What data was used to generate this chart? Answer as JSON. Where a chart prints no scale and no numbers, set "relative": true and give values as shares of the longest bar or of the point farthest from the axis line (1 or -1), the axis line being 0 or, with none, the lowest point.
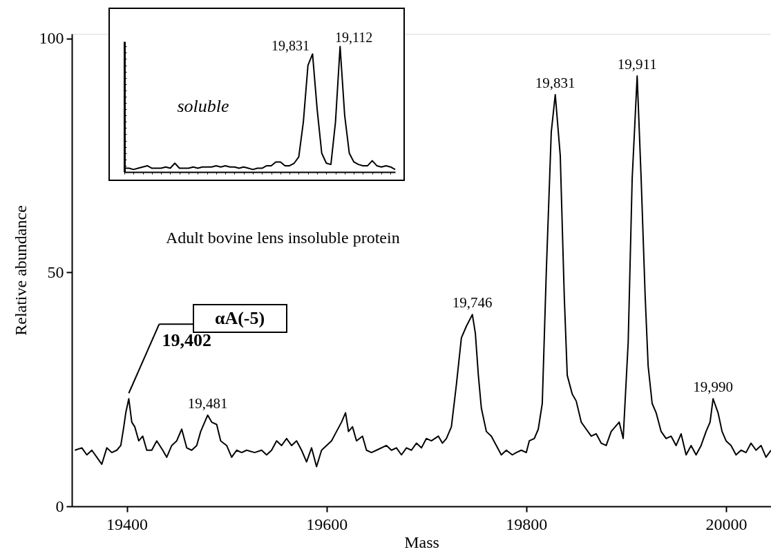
{
  "chart_data": [
    {
      "type": "line",
      "xlabel": "Mass",
      "ylabel": "Relative abundance",
      "xlim": [
        19345,
        20045
      ],
      "ylim": [
        0,
        101
      ],
      "xticks": [
        {
          "value": 19400,
          "label": "19400"
        },
        {
          "value": 19600,
          "label": "19600"
        },
        {
          "value": 19800,
          "label": "19800"
        },
        {
          "value": 20000,
          "label": "20000"
        }
      ],
      "yticks": [
        0,
        50,
        100
      ],
      "x": [
        19348,
        19355,
        19360,
        19365,
        19370,
        19375,
        19380,
        19385,
        19390,
        19394,
        19397,
        19399,
        19402,
        19405,
        19408,
        19412,
        19416,
        19420,
        19425,
        19430,
        19436,
        19440,
        19445,
        19450,
        19455,
        19460,
        19465,
        19470,
        19474,
        19478,
        19481,
        19485,
        19490,
        19494,
        19500,
        19505,
        19510,
        19515,
        19520,
        19528,
        19535,
        19540,
        19545,
        19550,
        19555,
        19560,
        19565,
        19570,
        19575,
        19580,
        19585,
        19590,
        19595,
        19600,
        19605,
        19610,
        19615,
        19619,
        19622,
        19626,
        19630,
        19636,
        19640,
        19645,
        19650,
        19660,
        19665,
        19670,
        19675,
        19680,
        19685,
        19690,
        19695,
        19700,
        19705,
        19712,
        19716,
        19720,
        19725,
        19730,
        19735,
        19740,
        19746,
        19749,
        19752,
        19755,
        19760,
        19765,
        19770,
        19775,
        19780,
        19786,
        19790,
        19795,
        19800,
        19803,
        19808,
        19812,
        19816,
        19820,
        19825,
        19829,
        19834,
        19838,
        19841,
        19846,
        19850,
        19855,
        19860,
        19865,
        19870,
        19875,
        19880,
        19885,
        19889,
        19893,
        19897,
        19902,
        19906,
        19911,
        19915,
        19919,
        19922,
        19926,
        19930,
        19935,
        19940,
        19945,
        19950,
        19955,
        19960,
        19965,
        19970,
        19975,
        19980,
        19984,
        19987,
        19992,
        19996,
        20000,
        20005,
        20010,
        20015,
        20020,
        20025,
        20030,
        20035,
        20040,
        20045
      ],
      "series": [
        {
          "color": "#000000",
          "values": [
            12,
            12.5,
            11,
            12,
            10.5,
            9,
            12.5,
            11.5,
            12,
            13,
            17,
            20,
            23,
            18,
            17,
            14,
            15,
            12,
            12,
            14,
            12,
            10.5,
            13,
            14,
            16.5,
            12.5,
            12,
            13,
            16,
            18,
            19.5,
            18,
            17.5,
            14,
            13,
            10.5,
            12,
            11.5,
            12,
            11.5,
            12,
            11,
            12,
            14,
            13,
            14.5,
            13,
            14,
            12,
            9.5,
            12.5,
            8.5,
            12,
            13,
            14,
            16,
            18,
            20,
            16,
            17,
            14,
            15,
            12,
            11.5,
            12,
            13,
            12,
            12.5,
            11,
            12.5,
            12,
            13.5,
            12.5,
            14.5,
            14,
            15,
            13.5,
            14.5,
            17,
            26,
            36,
            38.5,
            41,
            37,
            28,
            21,
            16,
            15,
            13,
            11,
            12,
            11,
            11.5,
            12,
            11.5,
            14,
            14.5,
            16.5,
            22,
            50,
            80,
            88,
            75,
            45,
            28,
            24,
            22.5,
            18,
            16.5,
            15,
            15.5,
            13.5,
            13,
            16,
            17,
            18,
            14.5,
            35,
            70,
            92,
            70,
            45,
            30,
            22,
            20,
            16,
            14.5,
            15,
            13,
            15.5,
            11,
            13,
            11,
            13,
            16,
            18,
            23,
            20,
            16,
            14,
            13,
            11,
            12,
            11.5,
            13.5,
            12,
            13,
            10.5,
            12
          ],
          "value_labels": [
            null,
            null,
            null,
            null,
            null,
            null,
            null,
            null,
            null,
            null,
            null,
            null,
            null,
            null,
            null,
            null,
            null,
            null,
            null,
            null,
            null,
            null,
            null,
            null,
            null,
            null,
            null,
            null,
            null,
            null,
            null,
            null,
            null,
            null,
            null,
            null,
            null,
            null,
            null,
            null,
            null,
            null,
            null,
            null,
            null,
            null,
            null,
            null,
            null,
            null,
            null,
            null,
            null,
            null,
            null,
            null,
            null,
            null,
            null,
            null,
            null,
            null,
            null,
            null,
            null,
            null,
            null,
            null,
            null,
            null,
            null,
            null,
            null,
            null,
            null,
            null,
            null,
            null,
            null,
            null,
            null,
            null,
            null,
            null,
            null,
            null,
            null,
            null,
            null,
            null,
            null,
            null,
            null,
            null,
            null,
            null,
            null,
            null,
            null,
            null,
            null,
            null,
            null,
            null,
            null,
            null,
            null,
            null,
            null,
            null,
            null,
            null,
            null,
            null,
            null,
            null,
            null,
            null,
            null,
            null,
            null,
            null,
            null,
            null,
            null,
            null,
            null,
            null,
            null,
            null,
            null,
            null,
            null,
            null,
            null,
            null,
            null,
            null,
            null,
            null,
            null,
            null,
            null,
            null,
            null,
            null,
            null,
            null,
            null
          ]
        }
      ],
      "annotations": [
        {
          "text": "19,402",
          "x": 19402,
          "y": 23
        },
        "αA(-5)",
        "Adult bovine lens insoluble protein",
        {
          "text": "19,481",
          "x": 19481,
          "y": 19.5
        },
        {
          "text": "19,746",
          "x": 19746,
          "y": 41
        },
        {
          "text": "19,831",
          "x": 19829,
          "y": 88
        },
        {
          "text": "19,911",
          "x": 19911,
          "y": 92
        },
        {
          "text": "19,990",
          "x": 19987,
          "y": 23
        }
      ]
    },
    {
      "type": "line",
      "relative": true,
      "tick_labels": false,
      "categories": [
        null,
        null,
        null,
        null,
        null,
        null,
        null,
        null,
        null,
        null,
        null,
        null,
        null,
        null,
        null,
        null,
        null,
        null,
        null,
        null,
        null,
        null,
        null,
        null,
        null,
        null,
        null,
        null,
        null,
        null,
        null,
        null,
        null,
        null,
        null,
        null,
        null,
        null,
        null,
        null,
        null,
        null,
        null,
        null,
        null,
        null,
        null,
        null,
        null,
        null,
        null,
        null,
        null,
        null,
        null,
        null,
        null,
        null,
        null,
        null
      ],
      "series": [
        {
          "color": "#000000",
          "values": [
            0.03,
            0.03,
            0.02,
            0.03,
            0.04,
            0.05,
            0.03,
            0.03,
            0.03,
            0.04,
            0.03,
            0.07,
            0.03,
            0.03,
            0.03,
            0.04,
            0.03,
            0.04,
            0.04,
            0.04,
            0.05,
            0.04,
            0.05,
            0.04,
            0.04,
            0.03,
            0.04,
            0.03,
            0.02,
            0.03,
            0.03,
            0.05,
            0.05,
            0.08,
            0.08,
            0.05,
            0.05,
            0.07,
            0.12,
            0.4,
            0.85,
            0.94,
            0.5,
            0.15,
            0.07,
            0.06,
            0.4,
            1.0,
            0.45,
            0.15,
            0.08,
            0.06,
            0.05,
            0.05,
            0.09,
            0.05,
            0.04,
            0.05,
            0.04,
            0.02
          ]
        }
      ],
      "annotations": [
        "soluble",
        "19,831",
        "19,112"
      ]
    }
  ]
}
